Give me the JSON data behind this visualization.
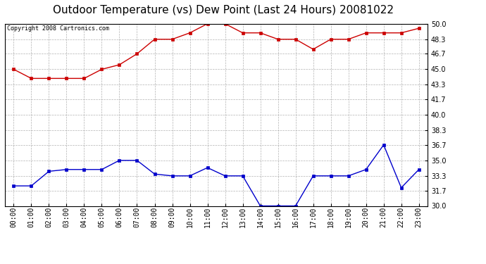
{
  "title": "Outdoor Temperature (vs) Dew Point (Last 24 Hours) 20081022",
  "copyright_text": "Copyright 2008 Cartronics.com",
  "x_labels": [
    "00:00",
    "01:00",
    "02:00",
    "03:00",
    "04:00",
    "05:00",
    "06:00",
    "07:00",
    "08:00",
    "09:00",
    "10:00",
    "11:00",
    "12:00",
    "13:00",
    "14:00",
    "15:00",
    "16:00",
    "17:00",
    "18:00",
    "19:00",
    "20:00",
    "21:00",
    "22:00",
    "23:00"
  ],
  "temp_data": [
    45.0,
    44.0,
    44.0,
    44.0,
    44.0,
    45.0,
    45.5,
    46.7,
    48.3,
    48.3,
    49.0,
    50.0,
    50.0,
    49.0,
    49.0,
    48.3,
    48.3,
    47.2,
    48.3,
    48.3,
    49.0,
    49.0,
    49.0,
    49.5
  ],
  "dew_data": [
    32.2,
    32.2,
    33.8,
    34.0,
    34.0,
    34.0,
    35.0,
    35.0,
    33.5,
    33.3,
    33.3,
    34.2,
    33.3,
    33.3,
    30.0,
    30.0,
    30.0,
    33.3,
    33.3,
    33.3,
    34.0,
    36.7,
    32.0,
    34.0
  ],
  "temp_color": "#cc0000",
  "dew_color": "#0000cc",
  "bg_color": "#ffffff",
  "grid_color": "#aaaaaa",
  "ymin": 30.0,
  "ymax": 50.0,
  "ytick_values": [
    30.0,
    31.7,
    33.3,
    35.0,
    36.7,
    38.3,
    40.0,
    41.7,
    43.3,
    45.0,
    46.7,
    48.3,
    50.0
  ],
  "title_fontsize": 11,
  "copyright_fontsize": 6,
  "tick_fontsize": 7
}
